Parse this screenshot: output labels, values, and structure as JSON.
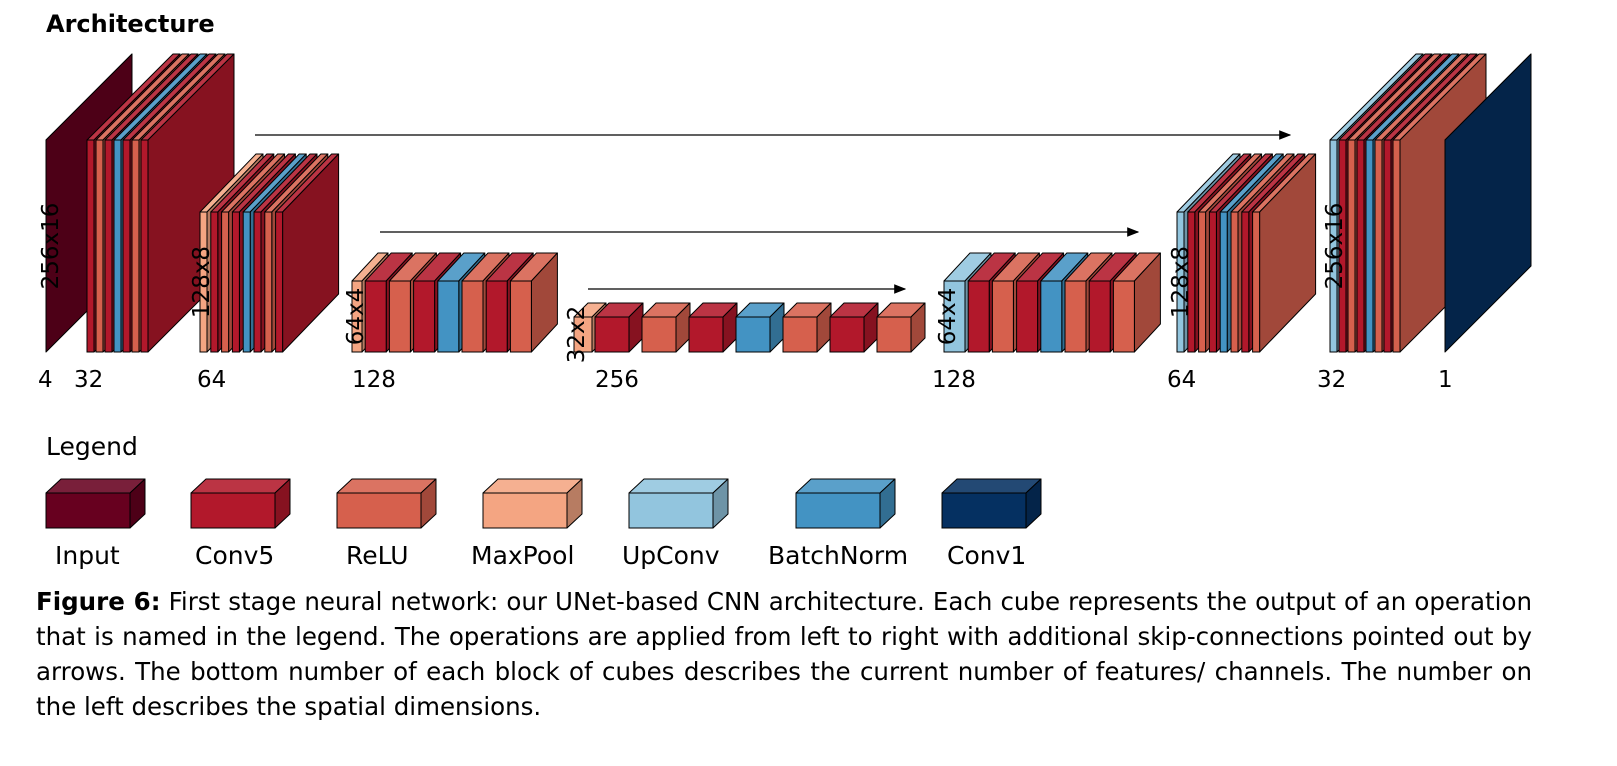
{
  "title": "Architecture",
  "colors": {
    "Input": "#67001f",
    "Conv5": "#b2182b",
    "ReLU": "#d6604d",
    "MaxPool": "#f4a582",
    "UpConv": "#92c5de",
    "BatchNorm": "#4393c3",
    "Conv1": "#053061"
  },
  "blocks": [
    {
      "channels": "4",
      "spatial": "256x16",
      "layers": [
        "Input"
      ]
    },
    {
      "channels": "32",
      "spatial": "",
      "layers": [
        "Conv5",
        "ReLU",
        "Conv5",
        "BatchNorm",
        "Conv5",
        "ReLU",
        "Conv5"
      ]
    },
    {
      "channels": "64",
      "spatial": "128x8",
      "layers": [
        "MaxPool",
        "Conv5",
        "ReLU",
        "Conv5",
        "BatchNorm",
        "Conv5",
        "ReLU",
        "Conv5"
      ]
    },
    {
      "channels": "128",
      "spatial": "64x4",
      "layers": [
        "MaxPool",
        "Conv5",
        "ReLU",
        "Conv5",
        "BatchNorm",
        "ReLU",
        "Conv5",
        "ReLU"
      ]
    },
    {
      "channels": "256",
      "spatial": "32x2",
      "layers": [
        "MaxPool",
        "Conv5",
        "ReLU",
        "Conv5",
        "BatchNorm",
        "ReLU",
        "Conv5",
        "ReLU"
      ]
    },
    {
      "channels": "128",
      "spatial": "64x4",
      "layers": [
        "UpConv",
        "Conv5",
        "ReLU",
        "Conv5",
        "BatchNorm",
        "ReLU",
        "Conv5",
        "ReLU"
      ]
    },
    {
      "channels": "64",
      "spatial": "128x8",
      "layers": [
        "UpConv",
        "Conv5",
        "ReLU",
        "Conv5",
        "BatchNorm",
        "ReLU",
        "Conv5",
        "ReLU"
      ]
    },
    {
      "channels": "32",
      "spatial": "256x16",
      "layers": [
        "UpConv",
        "Conv5",
        "ReLU",
        "Conv5",
        "BatchNorm",
        "ReLU",
        "Conv5",
        "ReLU"
      ]
    },
    {
      "channels": "1",
      "spatial": "",
      "layers": [
        "Conv1"
      ]
    }
  ],
  "legend": {
    "title": "Legend",
    "items": [
      "Input",
      "Conv5",
      "ReLU",
      "MaxPool",
      "UpConv",
      "BatchNorm",
      "Conv1"
    ]
  },
  "caption": {
    "label": "Figure 6:",
    "text": " First stage neural network: our UNet-based CNN architecture. Each cube represents the output of an operation that is named in the legend. The operations are applied from left to right with additional skip-connections pointed out by arrows. The bottom number of each block of cubes describes the current number of features/ channels. The number on the left describes the spatial dimensions."
  }
}
